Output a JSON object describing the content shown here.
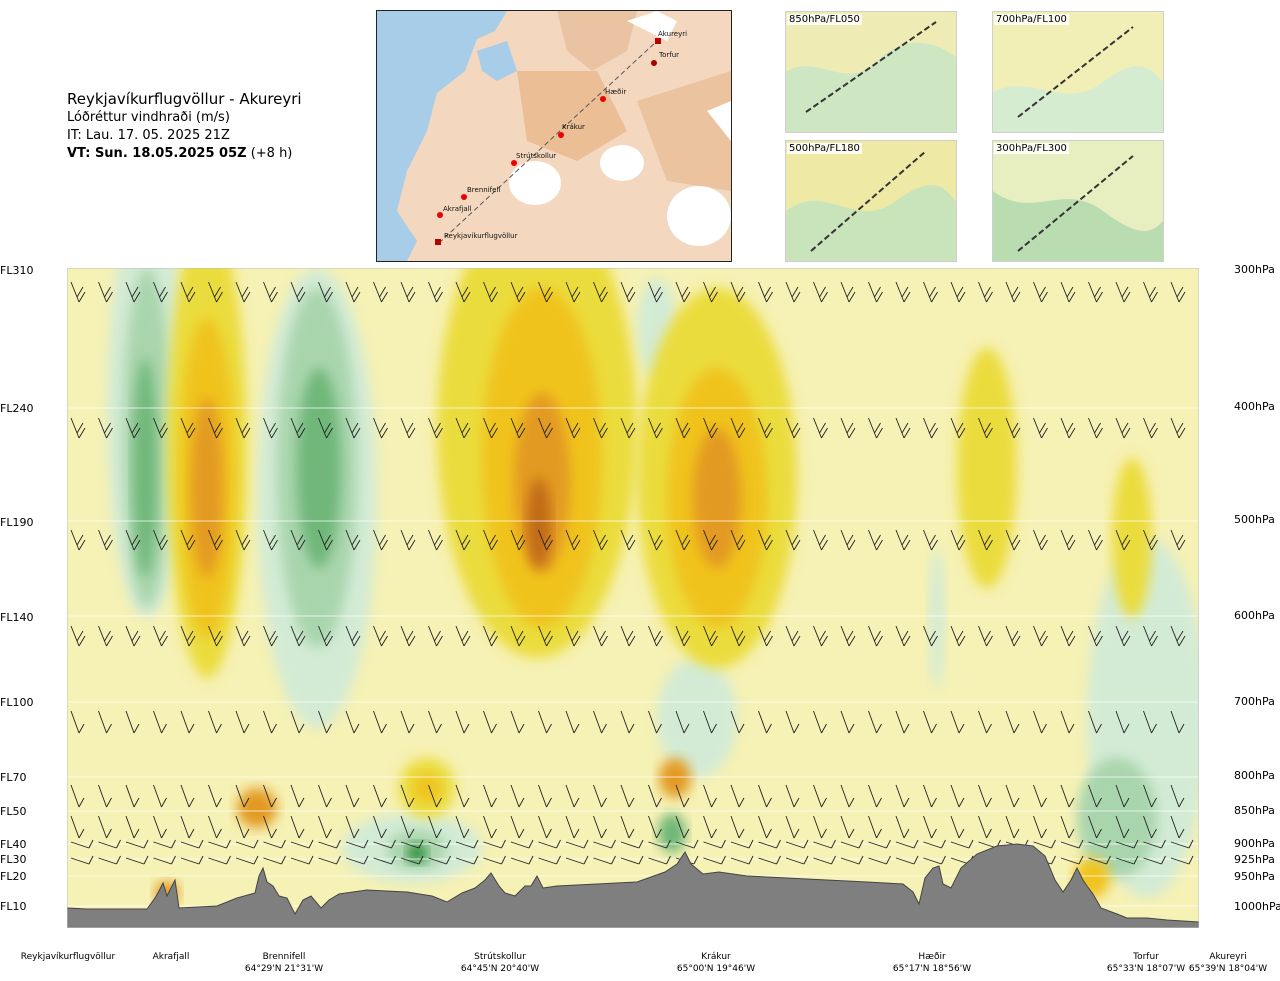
{
  "header": {
    "route": "Reykjavíkurflugvöllur - Akureyri",
    "parameter": "Lóðréttur vindhraði (m/s)",
    "it": "IT: Lau. 17. 05. 2025 21Z",
    "vt_bold": "VT: Sun. 18.05.2025 05Z",
    "vt_offset": " (+8 h)"
  },
  "map_labels": [
    "Akureyri",
    "Torfur",
    "Hæðir",
    "Krákur",
    "Strútskollur",
    "Brennifell",
    "Akrafjall",
    "Reykjavíkurflugvöllur"
  ],
  "thumbnails": [
    "850hPa/FL050",
    "700hPa/FL100",
    "500hPa/FL180",
    "300hPa/FL300"
  ],
  "levels": [
    {
      "fl": "FL310",
      "hpa": "300hPa"
    },
    {
      "fl": "FL240",
      "hpa": "400hPa"
    },
    {
      "fl": "FL190",
      "hpa": "500hPa"
    },
    {
      "fl": "FL140",
      "hpa": "600hPa"
    },
    {
      "fl": "FL100",
      "hpa": "700hPa"
    },
    {
      "fl": "FL70",
      "hpa": "800hPa"
    },
    {
      "fl": "FL50",
      "hpa": "850hPa"
    },
    {
      "fl": "FL40",
      "hpa": "900hPa"
    },
    {
      "fl": "FL30",
      "hpa": "925hPa"
    },
    {
      "fl": "FL20",
      "hpa": "950hPa"
    },
    {
      "fl": "FL10",
      "hpa": "1000hPa"
    }
  ],
  "stations": [
    {
      "name": "Reykjavíkurflugvöllur",
      "coord": ""
    },
    {
      "name": "Akrafjall",
      "coord": ""
    },
    {
      "name": "Brennifell",
      "coord": "64°29'N 21°31'W"
    },
    {
      "name": "Strútskollur",
      "coord": "64°45'N 20°40'W"
    },
    {
      "name": "Krákur",
      "coord": "65°00'N 19°46'W"
    },
    {
      "name": "Hæðir",
      "coord": "65°17'N 18°56'W"
    },
    {
      "name": "Torfur",
      "coord": "65°33'N 18°07'W"
    },
    {
      "name": "Akureyri",
      "coord": "65°39'N 18°04'W"
    }
  ],
  "colors": {
    "down_strong": "#2e8f3e",
    "down_mid": "#6fb779",
    "down_weak": "#a9d5ad",
    "down_faint": "#d3ebd5",
    "up_faint": "#f6f1b4",
    "up_weak": "#ebdc3c",
    "up_mid": "#f0c31b",
    "up_strong": "#e39a22",
    "up_max": "#c06a16",
    "terrain": "#7f7f7f"
  },
  "chart_data": {
    "type": "heatmap",
    "variable": "Lóðréttur vindhraði (m/s)",
    "x_stations": [
      "Reykjavíkurflugvöllur",
      "Akrafjall",
      "Brennifell",
      "Strútskollur",
      "Krákur",
      "Hæðir",
      "Torfur",
      "Akureyri"
    ],
    "y_levels_fl": [
      "FL310",
      "FL240",
      "FL190",
      "FL140",
      "FL100",
      "FL70",
      "FL50",
      "FL40",
      "FL30",
      "FL20",
      "FL10"
    ],
    "y_levels_hpa": [
      "300hPa",
      "400hPa",
      "500hPa",
      "600hPa",
      "700hPa",
      "800hPa",
      "850hPa",
      "900hPa",
      "925hPa",
      "950hPa",
      "1000hPa"
    ],
    "grid": true,
    "wind_barbs": true
  }
}
